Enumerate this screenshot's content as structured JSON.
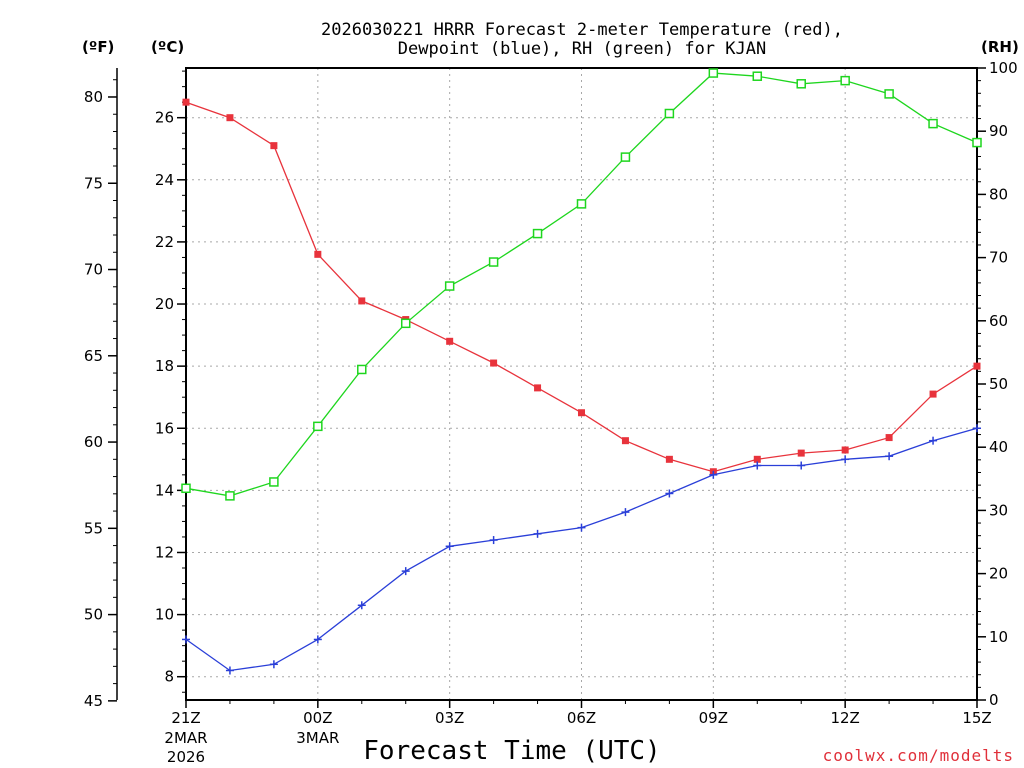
{
  "chart_data": {
    "type": "line",
    "title_line1": "2026030221 HRRR Forecast 2-meter Temperature (red),",
    "title_line2": "Dewpoint (blue), RH (green) for KJAN",
    "xlabel": "Forecast Time (UTC)",
    "credit": "coolwx.com/modelts",
    "unit_f": "(ºF)",
    "unit_c": "(ºC)",
    "unit_rh": "(RH)",
    "x_hours": [
      0,
      1,
      2,
      3,
      4,
      5,
      6,
      7,
      8,
      9,
      10,
      11,
      12,
      13,
      14,
      15,
      16,
      17,
      18
    ],
    "x_ticks": [
      {
        "hour": 0,
        "label": "21Z",
        "sub1": "2MAR",
        "sub2": "2026"
      },
      {
        "hour": 3,
        "label": "00Z",
        "sub1": "3MAR",
        "sub2": ""
      },
      {
        "hour": 6,
        "label": "03Z",
        "sub1": "",
        "sub2": ""
      },
      {
        "hour": 9,
        "label": "06Z",
        "sub1": "",
        "sub2": ""
      },
      {
        "hour": 12,
        "label": "09Z",
        "sub1": "",
        "sub2": ""
      },
      {
        "hour": 15,
        "label": "12Z",
        "sub1": "",
        "sub2": ""
      },
      {
        "hour": 18,
        "label": "15Z",
        "sub1": "",
        "sub2": ""
      }
    ],
    "ylim_c": [
      7.25,
      27.6
    ],
    "y_ticks_c": [
      8,
      10,
      12,
      14,
      16,
      18,
      20,
      22,
      24,
      26
    ],
    "ylim_f": [
      45.05,
      81.68
    ],
    "y_ticks_f": [
      45,
      50,
      55,
      60,
      65,
      70,
      75,
      80
    ],
    "ylim_rh": [
      0,
      100
    ],
    "y_ticks_rh": [
      0,
      10,
      20,
      30,
      40,
      50,
      60,
      70,
      80,
      90,
      100
    ],
    "series": [
      {
        "name": "Temperature",
        "axis": "c",
        "color": "#e8333c",
        "marker": "filled-square",
        "values": [
          26.5,
          26.0,
          25.1,
          21.6,
          20.1,
          19.5,
          18.8,
          18.1,
          17.3,
          16.5,
          15.6,
          15.0,
          14.6,
          15.0,
          15.2,
          15.3,
          15.7,
          17.1,
          18.0
        ]
      },
      {
        "name": "Dewpoint",
        "axis": "c",
        "color": "#2a3fd8",
        "marker": "plus",
        "values": [
          9.2,
          8.2,
          8.4,
          9.2,
          10.3,
          11.4,
          12.2,
          12.4,
          12.6,
          12.8,
          13.3,
          13.9,
          14.5,
          14.8,
          14.8,
          15.0,
          15.1,
          15.6,
          16.0
        ]
      },
      {
        "name": "RH",
        "axis": "rh",
        "color": "#1ed61e",
        "marker": "open-square",
        "values": [
          33.5,
          32.3,
          34.5,
          43.3,
          52.3,
          59.6,
          65.5,
          69.3,
          73.8,
          78.5,
          85.9,
          92.8,
          99.2,
          98.7,
          97.5,
          98.0,
          95.9,
          91.2,
          88.2
        ]
      }
    ]
  }
}
